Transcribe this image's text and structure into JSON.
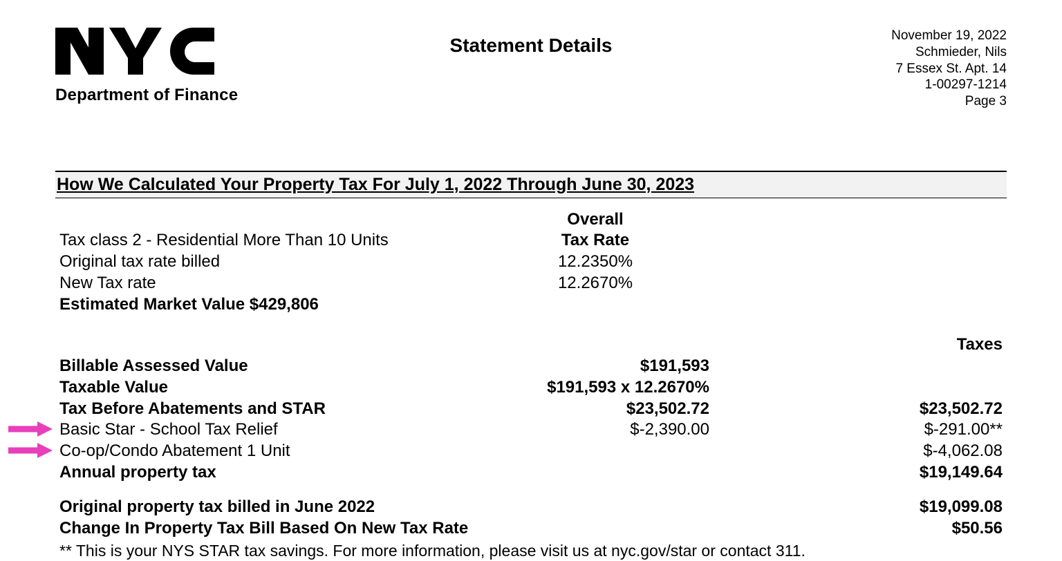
{
  "colors": {
    "text": "#000000",
    "background": "#ffffff",
    "section_bg": "#f2f2f2",
    "arrow": "#e83fbb"
  },
  "header": {
    "logo_label": "NYC",
    "department": "Department of Finance",
    "title": "Statement Details",
    "date": "November 19, 2022",
    "recipient_name": "Schmieder, Nils",
    "recipient_address": "7 Essex St. Apt. 14",
    "account_number": "1-00297-1214",
    "page_label": "Page  3"
  },
  "section": {
    "title": "How We Calculated Your Property Tax For July 1, 2022 Through June 30, 2023"
  },
  "tax_rate_block": {
    "overall_label": "Overall",
    "tax_rate_label": "Tax Rate",
    "tax_class_label": "Tax class   2 -  Residential More Than 10 Units",
    "original_rate_label": "Original tax rate billed",
    "original_rate_value": "12.2350%",
    "new_rate_label": "New Tax rate",
    "new_rate_value": "12.2670%",
    "market_value_label": "Estimated Market Value   $429,806"
  },
  "taxes_block": {
    "taxes_header": "Taxes",
    "rows": [
      {
        "label": "Billable Assessed Value",
        "mid": "$191,593",
        "right": "",
        "bold": true,
        "arrow": false
      },
      {
        "label": "Taxable Value",
        "mid": "$191,593 x 12.2670%",
        "right": "",
        "bold": true,
        "arrow": false
      },
      {
        "label": "Tax Before Abatements and STAR",
        "mid": "$23,502.72",
        "right": "$23,502.72",
        "bold": true,
        "arrow": false
      },
      {
        "label": "Basic Star - School Tax Relief",
        "mid": "$-2,390.00",
        "right": "$-291.00**",
        "bold": false,
        "arrow": true
      },
      {
        "label": "Co-op/Condo Abatement  1 Unit",
        "mid": "",
        "right": "$-4,062.08",
        "bold": false,
        "arrow": true
      },
      {
        "label": "Annual property tax",
        "mid": "",
        "right": "$19,149.64",
        "bold": true,
        "arrow": false
      }
    ],
    "summary": [
      {
        "label": "Original property tax billed in June 2022",
        "right": "$19,099.08"
      },
      {
        "label": "Change In Property Tax Bill Based On New Tax Rate",
        "right": "$50.56"
      }
    ],
    "footnote": "** This is your NYS STAR tax savings.  For more information, please visit us at nyc.gov/star or contact 311."
  }
}
